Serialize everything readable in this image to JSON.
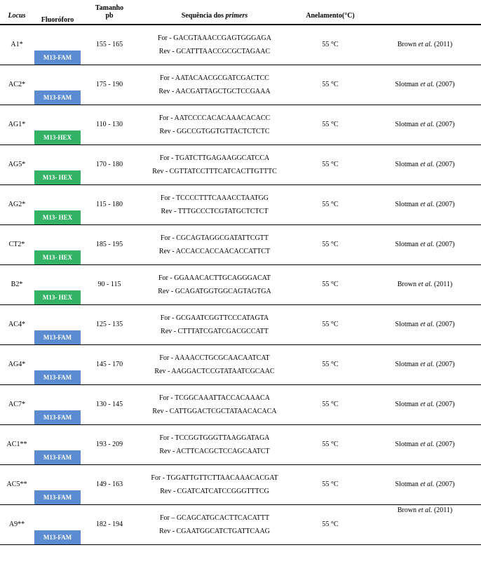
{
  "colors": {
    "fam": "#5b8bd0",
    "hex": "#34b366"
  },
  "header": {
    "locus": "Locus",
    "fluor": "Fluoróforo",
    "tam1": "Tamanho",
    "tam2": "pb",
    "seq_pre": "Sequência dos ",
    "seq_it": "primers",
    "anel": "Anelamento(°C)"
  },
  "rows": [
    {
      "locus": "A1*",
      "fluor": "M13-FAM",
      "fluorColor": "fam",
      "tam": "155 - 165",
      "for": "For - GACGTAAACCGAGTGGGAGA",
      "rev": "Rev - GCATTTAACCGCGCTAGAAC",
      "anel": "55 °C",
      "ref": "Brown <i>et al.</i> (2011)"
    },
    {
      "locus": "AC2*",
      "fluor": "M13-FAM",
      "fluorColor": "fam",
      "tam": "175 - 190",
      "for": "For - AATACAACGCGATCGACTCC",
      "rev": "Rev - AACGATTAGCTGCTCCGAAA",
      "anel": "55 °C",
      "ref": "Slotman <i>et al.</i> (2007)"
    },
    {
      "locus": "AG1*",
      "fluor": "M13-HEX",
      "fluorColor": "hex",
      "tam": "110 - 130",
      "for": "For - AATCCCCACACAAACACACC",
      "rev": "Rev - GGCCGTGGTGTTACTCTCTC",
      "anel": "55 °C",
      "ref": "Slotman <i>et al.</i> (2007)"
    },
    {
      "locus": "AG5*",
      "fluor": "M13- HEX",
      "fluorColor": "hex",
      "tam": "170 - 180",
      "for": "For - TGATCTTGAGAAGGCATCCA",
      "rev": "Rev - CGTTATCCTTTCATCACTTGTTTC",
      "anel": "55 °C",
      "ref": "Slotman <i>et al.</i> (2007)"
    },
    {
      "locus": "AG2*",
      "fluor": "M13- HEX",
      "fluorColor": "hex",
      "tam": "115 - 180",
      "for": "For - TCCCCTTTCAAACCTAATGG",
      "rev": "Rev - TTTGCCCTCGTATGCTCTCT",
      "anel": "55 °C",
      "ref": "Slotman <i>et al.</i> (2007)"
    },
    {
      "locus": "CT2*",
      "fluor": "M13- HEX",
      "fluorColor": "hex",
      "tam": "185 - 195",
      "for": "For - CGCAGTAGGCGATATTCGTT",
      "rev": "Rev - ACCACCACCAACACCATTCT",
      "anel": "55 °C",
      "ref": "Slotman <i>et al.</i> (2007)"
    },
    {
      "locus": "B2*",
      "fluor": "M13- HEX",
      "fluorColor": "hex",
      "tam": "90 - 115",
      "for": "For - GGAAACACTTGCAGGGACAT",
      "rev": "Rev - GCAGATGGTGGCAGTAGTGA",
      "anel": "55 °C",
      "ref": "Brown <i>et al.</i> (2011)"
    },
    {
      "locus": "AC4*",
      "fluor": "M13-FAM",
      "fluorColor": "fam",
      "tam": "125 - 135",
      "for": "For - GCGAATCGGTTCCCATAGTA",
      "rev": "Rev - CTTTATCGATCGACGCCATT",
      "anel": "55 °C",
      "ref": "Slotman <i>et al.</i> (2007)"
    },
    {
      "locus": "AG4*",
      "fluor": "M13-FAM",
      "fluorColor": "fam",
      "tam": "145 - 170",
      "for": "For - AAAACCTGCGCAACAATCAT",
      "rev": "Rev - AAGGACTCCGTATAATCGCAAC",
      "anel": "55 °C",
      "ref": "Slotman <i>et al.</i> (2007)"
    },
    {
      "locus": "AC7*",
      "fluor": "M13-FAM",
      "fluorColor": "fam",
      "tam": "130 - 145",
      "for": "For - TCGGCAAATTACCACAAACA",
      "rev": "Rev - CATTGGACTCGCTATAACACACA",
      "anel": "55 °C",
      "ref": "Slotman <i>et al.</i> (2007)"
    },
    {
      "locus": "AC1**",
      "fluor": "M13-FAM",
      "fluorColor": "fam",
      "tam": "193 - 209",
      "for": "For - TCCGGTGGGTTAAGGATAGA",
      "rev": "Rev - ACTTCACGCTCCAGCAATCT",
      "anel": "55 °C",
      "ref": "Slotman <i>et al.</i> (2007)"
    },
    {
      "locus": "AC5**",
      "fluor": "M13-FAM",
      "fluorColor": "fam",
      "tam": "149 - 163",
      "for": "For - TGGATTGTTCTTAACAAACACGAT",
      "rev": "Rev - CGATCATCATCCGGGTTTCG",
      "anel": "55 °C",
      "ref": "Slotman <i>et al.</i> (2007)"
    },
    {
      "locus": "A9**",
      "fluor": "M13-FAM",
      "fluorColor": "fam",
      "tam": "182 - 194",
      "for": "For – GCAGCATGCACTTCACATTT",
      "rev": "Rev - CGAATGGCATCTGATTCAAG",
      "anel": "55 °C",
      "ref": "Brown <i>et al.</i> (2011)",
      "refSingleLine": true
    }
  ]
}
